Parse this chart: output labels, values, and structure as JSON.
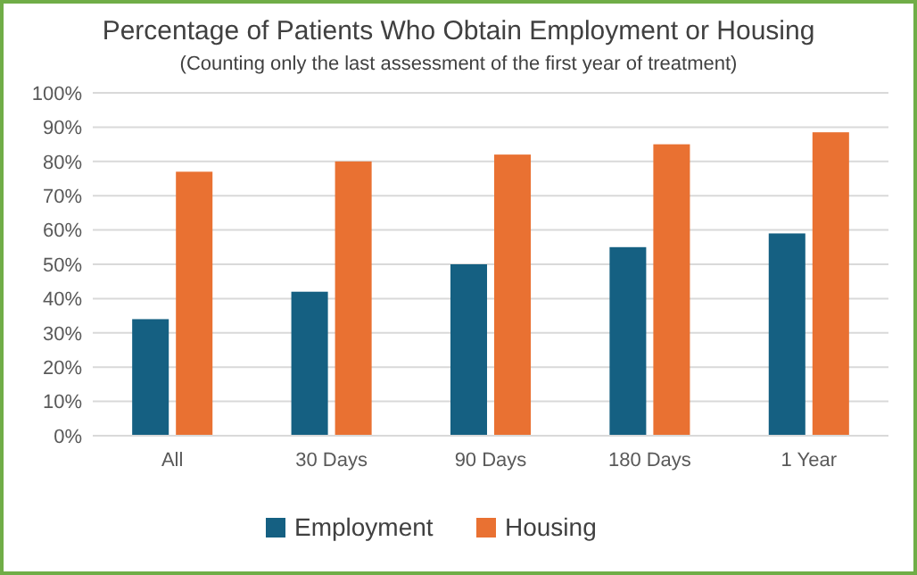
{
  "chart_data": {
    "type": "bar",
    "title": "Percentage of Patients Who Obtain Employment or Housing",
    "subtitle": "(Counting only the last assessment of the first year of treatment)",
    "categories": [
      "All",
      "30 Days",
      "90 Days",
      "180 Days",
      "1 Year"
    ],
    "series": [
      {
        "name": "Employment",
        "color": "#156082",
        "values": [
          34,
          42,
          50,
          55,
          59
        ]
      },
      {
        "name": "Housing",
        "color": "#e97132",
        "values": [
          77,
          80,
          82,
          85,
          88.5
        ]
      }
    ],
    "ylim": [
      0,
      100
    ],
    "yticks": [
      {
        "value": 0,
        "label": "0%"
      },
      {
        "value": 10,
        "label": "10%"
      },
      {
        "value": 20,
        "label": "20%"
      },
      {
        "value": 30,
        "label": "30%"
      },
      {
        "value": 40,
        "label": "40%"
      },
      {
        "value": 50,
        "label": "50%"
      },
      {
        "value": 60,
        "label": "60%"
      },
      {
        "value": 70,
        "label": "70%"
      },
      {
        "value": 80,
        "label": "80%"
      },
      {
        "value": 90,
        "label": "90%"
      },
      {
        "value": 100,
        "label": "100%"
      }
    ],
    "grid": "y",
    "legend": "bottom"
  }
}
